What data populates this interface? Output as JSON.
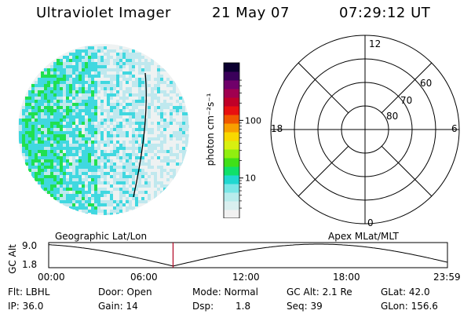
{
  "header": {
    "instrument": "Ultraviolet Imager",
    "date": "21 May 07",
    "time": "07:29:12 UT"
  },
  "colorbar": {
    "unit_label": "photon cm⁻²s⁻¹",
    "ticks": [
      {
        "label": "100",
        "value": 100
      },
      {
        "label": "10",
        "value": 10
      }
    ],
    "colors": [
      "#f1f1f1",
      "#d9efef",
      "#b8ecec",
      "#79e6e6",
      "#20d8d0",
      "#10e06a",
      "#40e018",
      "#90ee10",
      "#d8f010",
      "#f8d800",
      "#f8a000",
      "#f05800",
      "#e81010",
      "#c00028",
      "#a00050",
      "#70006a",
      "#3a005a",
      "#0c0030"
    ]
  },
  "polar": {
    "mlt_labels": {
      "top": "12",
      "left": "18",
      "right": "6",
      "bottom": "0"
    },
    "lat_labels": [
      "80",
      "70",
      "60"
    ]
  },
  "timeline": {
    "left_label": "Geographic Lat/Lon",
    "right_label": "Apex MLat/MLT",
    "y_axis_label": "GC Alt",
    "y_ticks": [
      "9.0",
      "1.8"
    ],
    "x_ticks": [
      "00:00",
      "06:00",
      "12:00",
      "18:00",
      "23:59"
    ],
    "current_time_hours": 7.486
  },
  "footer": {
    "flt": "Flt: LBHL",
    "ip": "IP: 36.0",
    "door": "Door: Open",
    "gain": "Gain: 14",
    "mode": "Mode: Normal",
    "dsp_label": "Dsp:",
    "dsp_value": "1.8",
    "gc_alt": "GC Alt: 2.1 Re",
    "seq": "Seq: 39",
    "glat": "GLat:  42.0",
    "glon": "GLon: 156.6"
  },
  "colors": {
    "marker": "#b00020",
    "strong": "#20e050",
    "medium": "#40d8e0",
    "weak": "#bfe8ee"
  }
}
